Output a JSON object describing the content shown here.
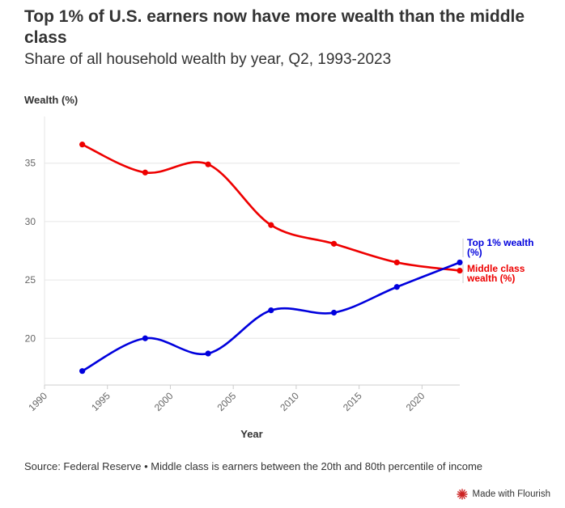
{
  "title": "Top 1% of U.S. earners now have more wealth than the middle class",
  "subtitle": "Share of all household wealth by year, Q2, 1993-2023",
  "footer": "Source: Federal Reserve • Middle class is earners between the 20th and 80th percentile of income",
  "brand": {
    "label": "Made with Flourish",
    "icon": "flourish-logo-icon",
    "color": "#cc2222"
  },
  "chart_data": {
    "type": "line",
    "xlabel": "Year",
    "ylabel": "Wealth (%)",
    "xlim": [
      1990,
      2023
    ],
    "ylim": [
      16,
      39
    ],
    "x_ticks": [
      1990,
      1995,
      2000,
      2005,
      2010,
      2015,
      2020
    ],
    "y_ticks": [
      20,
      25,
      30,
      35
    ],
    "grid": true,
    "legend": "direct labels at line ends (right)",
    "series": [
      {
        "name": "Middle class wealth (%)",
        "label_lines": [
          "Middle class",
          "wealth (%)"
        ],
        "color": "#ee0000",
        "x": [
          1993,
          1998,
          2003,
          2008,
          2013,
          2018,
          2023
        ],
        "values": [
          36.6,
          34.2,
          34.9,
          29.7,
          28.1,
          26.5,
          25.8
        ]
      },
      {
        "name": "Top 1% wealth (%)",
        "label_lines": [
          "Top 1% wealth",
          "(%)"
        ],
        "color": "#0000dd",
        "x": [
          1993,
          1998,
          2003,
          2008,
          2013,
          2018,
          2023
        ],
        "values": [
          17.2,
          20.0,
          18.7,
          22.4,
          22.2,
          24.4,
          26.5
        ]
      }
    ]
  }
}
